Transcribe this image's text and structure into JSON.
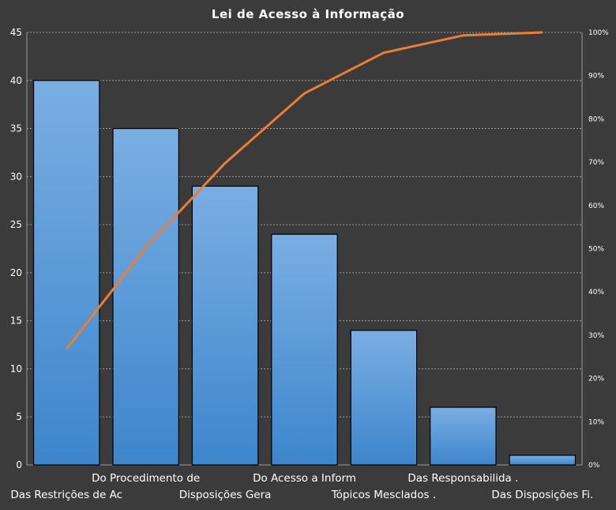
{
  "chart_data": {
    "type": "bar",
    "title": "Lei de Acesso à Informação",
    "categories": [
      "Das Restrições de Ac",
      "Do Procedimento  de",
      "Disposições Gera",
      "Do Acesso a Inform",
      "Tópicos Mesclados .",
      "Das Responsabilida .",
      "Das Disposições Fi."
    ],
    "values": [
      40,
      35,
      29,
      24,
      14,
      6,
      1
    ],
    "cumulative_percent": [
      26.8,
      50.3,
      69.8,
      85.9,
      95.3,
      99.3,
      100
    ],
    "ylim": [
      0,
      45
    ],
    "y_ticks": [
      0,
      5,
      10,
      15,
      20,
      25,
      30,
      35,
      40,
      45
    ],
    "y2lim": [
      0,
      100
    ],
    "y2_ticks": [
      "0%",
      "10%",
      "20%",
      "30%",
      "40%",
      "50%",
      "60%",
      "70%",
      "80%",
      "90%",
      "100%"
    ],
    "grid": true,
    "legend": "none",
    "colors": {
      "background": "#3c3b3b",
      "bar_top": "#7aaee3",
      "bar_bottom": "#3d86cc",
      "bar_stroke": "#000000",
      "line": "#ed7d31",
      "grid": "#9a9a9a",
      "text": "#ffffff"
    }
  }
}
